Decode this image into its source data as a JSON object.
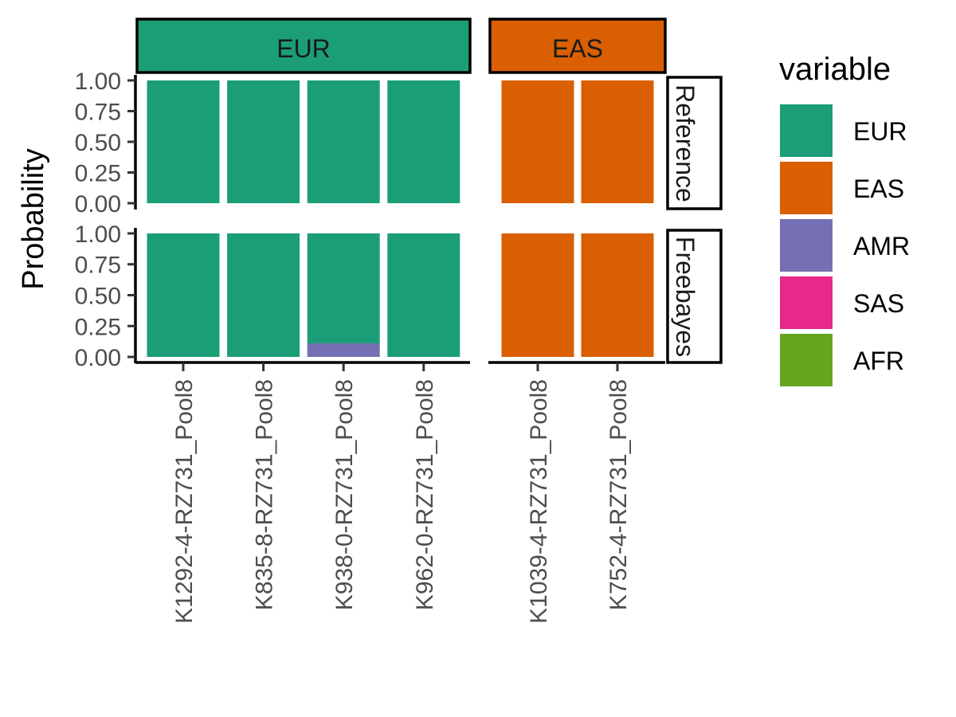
{
  "chart_data": {
    "type": "bar",
    "stacked": true,
    "ylabel": "Probability",
    "xlabel": "",
    "ylim": [
      0,
      1
    ],
    "y_ticks": [
      "0.00",
      "0.25",
      "0.50",
      "0.75",
      "1.00"
    ],
    "grid": false,
    "legend": {
      "title": "variable",
      "position": "right",
      "items": [
        {
          "name": "EUR",
          "color": "#1B9E77"
        },
        {
          "name": "EAS",
          "color": "#D95F02"
        },
        {
          "name": "AMR",
          "color": "#7570B3"
        },
        {
          "name": "SAS",
          "color": "#E7298A"
        },
        {
          "name": "AFR",
          "color": "#66A61E"
        }
      ]
    },
    "column_facets": [
      {
        "label": "EUR",
        "color": "#1B9E77",
        "samples": [
          "K1292-4-RZ731_Pool8",
          "K835-8-RZ731_Pool8",
          "K938-0-RZ731_Pool8",
          "K962-0-RZ731_Pool8"
        ]
      },
      {
        "label": "EAS",
        "color": "#D95F02",
        "samples": [
          "K1039-4-RZ731_Pool8",
          "K752-4-RZ731_Pool8"
        ]
      }
    ],
    "row_facets": [
      {
        "label": "Reference",
        "values": {
          "K1292-4-RZ731_Pool8": {
            "EUR": 1.0
          },
          "K835-8-RZ731_Pool8": {
            "EUR": 1.0
          },
          "K938-0-RZ731_Pool8": {
            "EUR": 1.0
          },
          "K962-0-RZ731_Pool8": {
            "EUR": 1.0
          },
          "K1039-4-RZ731_Pool8": {
            "EAS": 1.0
          },
          "K752-4-RZ731_Pool8": {
            "EAS": 1.0
          }
        }
      },
      {
        "label": "Freebayes",
        "values": {
          "K1292-4-RZ731_Pool8": {
            "EUR": 1.0
          },
          "K835-8-RZ731_Pool8": {
            "EUR": 1.0
          },
          "K938-0-RZ731_Pool8": {
            "EUR": 0.89,
            "AMR": 0.11
          },
          "K962-0-RZ731_Pool8": {
            "EUR": 1.0
          },
          "K1039-4-RZ731_Pool8": {
            "EAS": 1.0
          },
          "K752-4-RZ731_Pool8": {
            "EAS": 1.0
          }
        }
      }
    ]
  }
}
